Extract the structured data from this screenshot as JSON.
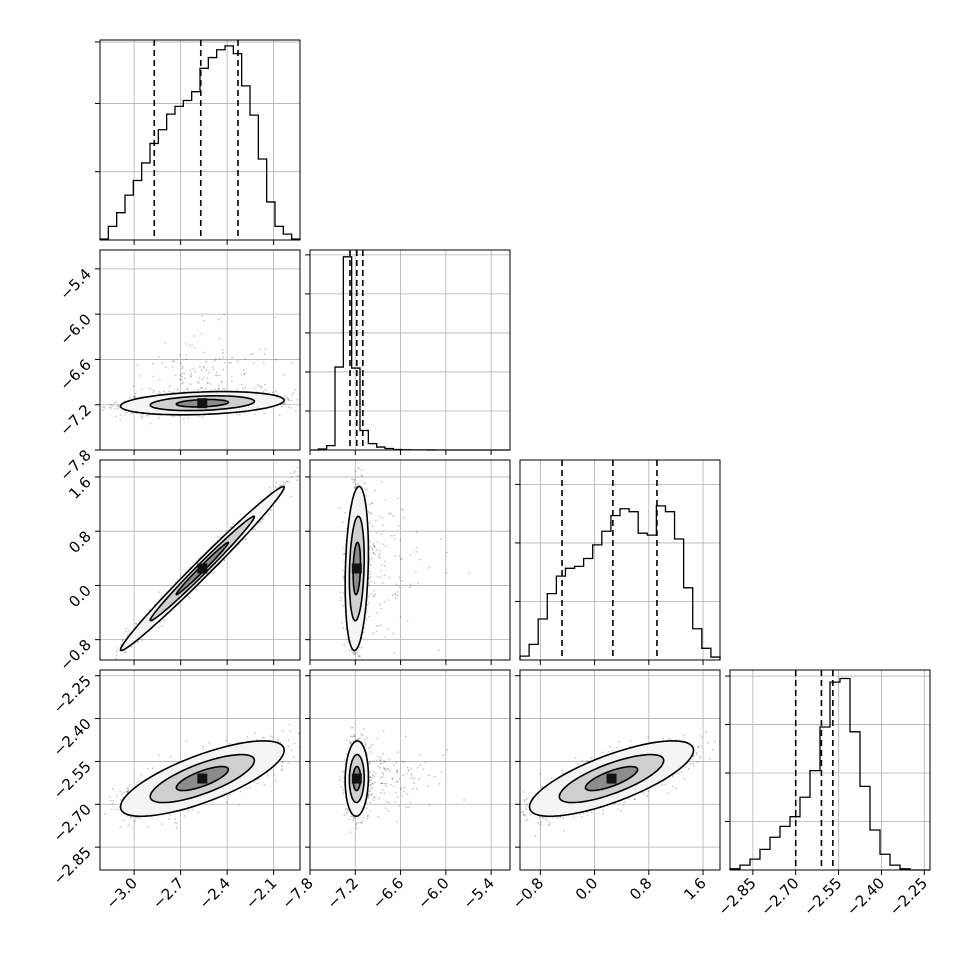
{
  "chart_data": {
    "type": "corner",
    "grid": true,
    "parameters": [
      {
        "ticks": [
          -3.0,
          -2.7,
          -2.4,
          -2.1
        ],
        "tick_labels": [
          "−3.0",
          "−2.7",
          "−2.4",
          "−2.1"
        ],
        "range": [
          -3.22,
          -1.93
        ],
        "center": -2.56,
        "sd": 0.24,
        "quantiles": [
          -2.87,
          -2.57,
          -2.33
        ]
      },
      {
        "ticks": [
          -7.8,
          -7.2,
          -6.6,
          -6.0,
          -5.4
        ],
        "tick_labels": [
          "−7.8",
          "−7.2",
          "−6.6",
          "−6.0",
          "−5.4"
        ],
        "range": [
          -7.8,
          -5.15
        ],
        "center": -7.18,
        "sd": 0.07,
        "quantiles": [
          -7.27,
          -7.18,
          -7.1
        ]
      },
      {
        "ticks": [
          -0.8,
          0.0,
          0.8,
          1.6
        ],
        "tick_labels": [
          "−0.8",
          "0.0",
          "0.8",
          "1.6"
        ],
        "range": [
          -1.1,
          1.85
        ],
        "center": 0.25,
        "sd": 0.55,
        "quantiles": [
          -0.48,
          0.27,
          0.92
        ]
      },
      {
        "ticks": [
          -2.85,
          -2.7,
          -2.55,
          -2.4,
          -2.25
        ],
        "tick_labels": [
          "−2.85",
          "−2.70",
          "−2.55",
          "−2.40",
          "−2.25"
        ],
        "range": [
          -2.93,
          -2.23
        ],
        "center": -2.61,
        "sd": 0.06,
        "quantiles": [
          -2.7,
          -2.61,
          -2.57
        ]
      }
    ],
    "histograms": [
      {
        "counts": [
          1,
          14,
          28,
          46,
          61,
          79,
          99,
          113,
          129,
          137,
          143,
          152,
          176,
          187,
          195,
          199,
          191,
          158,
          128,
          83,
          39,
          14,
          6,
          1
        ],
        "ylim": [
          0,
          205
        ],
        "ticks": [
          70,
          140,
          203
        ]
      },
      {
        "counts": [
          0,
          2,
          9,
          170,
          396,
          168,
          40,
          13,
          6,
          3,
          1,
          0.5,
          0.3,
          0.2,
          0.1,
          0,
          0,
          0,
          0,
          0,
          0,
          0,
          0,
          0
        ],
        "ylim": [
          0,
          410
        ],
        "ticks": [
          80,
          160,
          240,
          320,
          400
        ]
      },
      {
        "counts": [
          4,
          16,
          42,
          68,
          86,
          94,
          96,
          104,
          118,
          132,
          148,
          155,
          152,
          130,
          128,
          158,
          152,
          124,
          74,
          32,
          12,
          3
        ],
        "ylim": [
          0,
          205
        ],
        "ticks": [
          60,
          120,
          180
        ]
      },
      {
        "counts": [
          1,
          4,
          9,
          17,
          27,
          36,
          44,
          60,
          82,
          118,
          155,
          158,
          114,
          69,
          33,
          13,
          4,
          1,
          0,
          0
        ],
        "ylim": [
          0,
          165
        ],
        "ticks": [
          40,
          80,
          120,
          160
        ]
      }
    ],
    "contour_levels": 3,
    "scatter": "points outside the highest-density contour"
  }
}
